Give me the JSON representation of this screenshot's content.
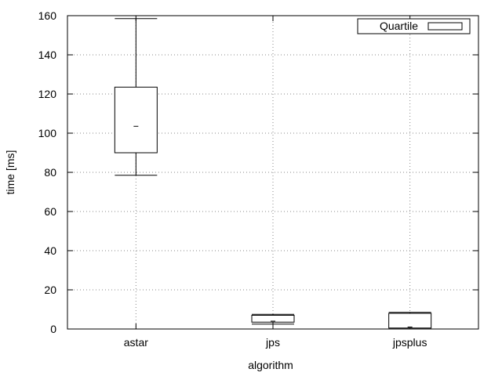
{
  "chart_data": {
    "type": "box",
    "categories": [
      "astar",
      "jps",
      "jpsplus"
    ],
    "series": [
      {
        "name": "Quartile",
        "boxes": [
          {
            "category": "astar",
            "min": 78.5,
            "q1": 90.0,
            "median": 103.5,
            "q3": 123.5,
            "max": 158.5
          },
          {
            "category": "jps",
            "min": 2.5,
            "q1": 3.5,
            "median": 4.0,
            "q3": 7.0,
            "max": 7.5
          },
          {
            "category": "jpsplus",
            "min": 0.5,
            "q1": 0.5,
            "median": 1.0,
            "q3": 8.0,
            "max": 8.5
          }
        ]
      }
    ],
    "xlabel": "algorithm",
    "ylabel": "time [ms]",
    "ylim": [
      0,
      160
    ],
    "yticks": [
      0,
      20,
      40,
      60,
      80,
      100,
      120,
      140,
      160
    ],
    "grid": true,
    "legend": "top-right"
  }
}
